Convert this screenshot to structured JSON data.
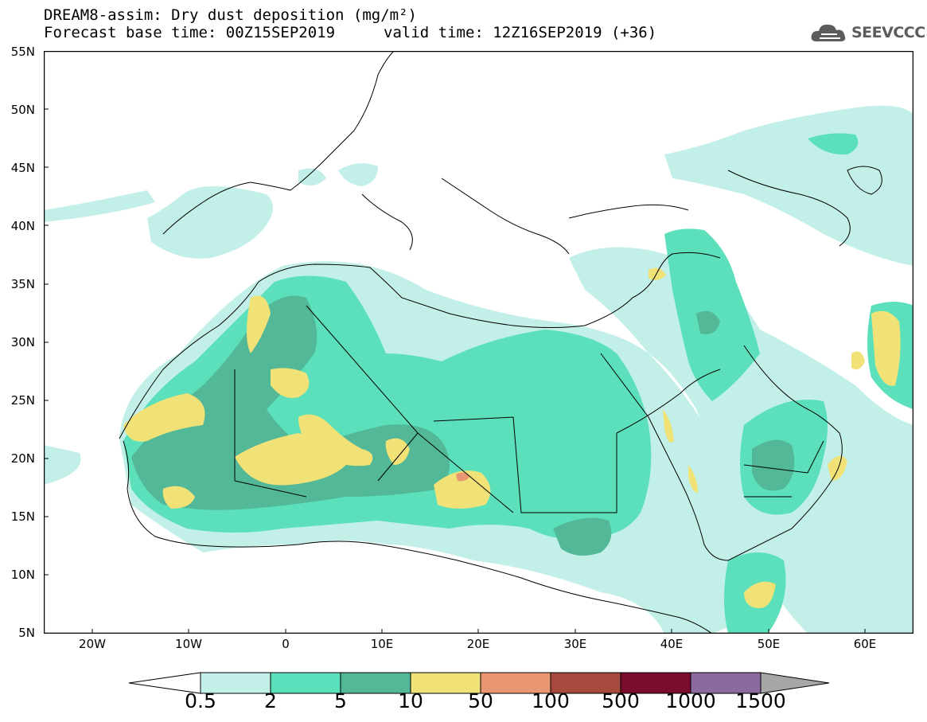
{
  "header": {
    "title_line1": "DREAM8-assim: Dry dust deposition (mg/m²)",
    "title_line2_left": "Forecast base time: 00Z15SEP2019",
    "title_line2_right": "valid time: 12Z16SEP2019 (+36)",
    "logo_text": "SEEVCCC"
  },
  "map": {
    "lat_labels": [
      "55N",
      "50N",
      "45N",
      "40N",
      "35N",
      "30N",
      "25N",
      "20N",
      "15N",
      "10N",
      "5N"
    ],
    "lon_labels": [
      "20W",
      "10W",
      "0",
      "10E",
      "20E",
      "30E",
      "40E",
      "50E",
      "60E"
    ],
    "lat_range": [
      5,
      55
    ],
    "lon_range": [
      -25,
      65
    ]
  },
  "legend": {
    "levels": [
      "0.5",
      "2",
      "5",
      "10",
      "50",
      "100",
      "500",
      "1000",
      "1500"
    ],
    "colors": [
      "#c2f0e8",
      "#5ce0bc",
      "#52b897",
      "#f0e277",
      "#e89770",
      "#a8493e",
      "#7a0d2d",
      "#8c6aa0",
      "#a6a6a6"
    ]
  }
}
